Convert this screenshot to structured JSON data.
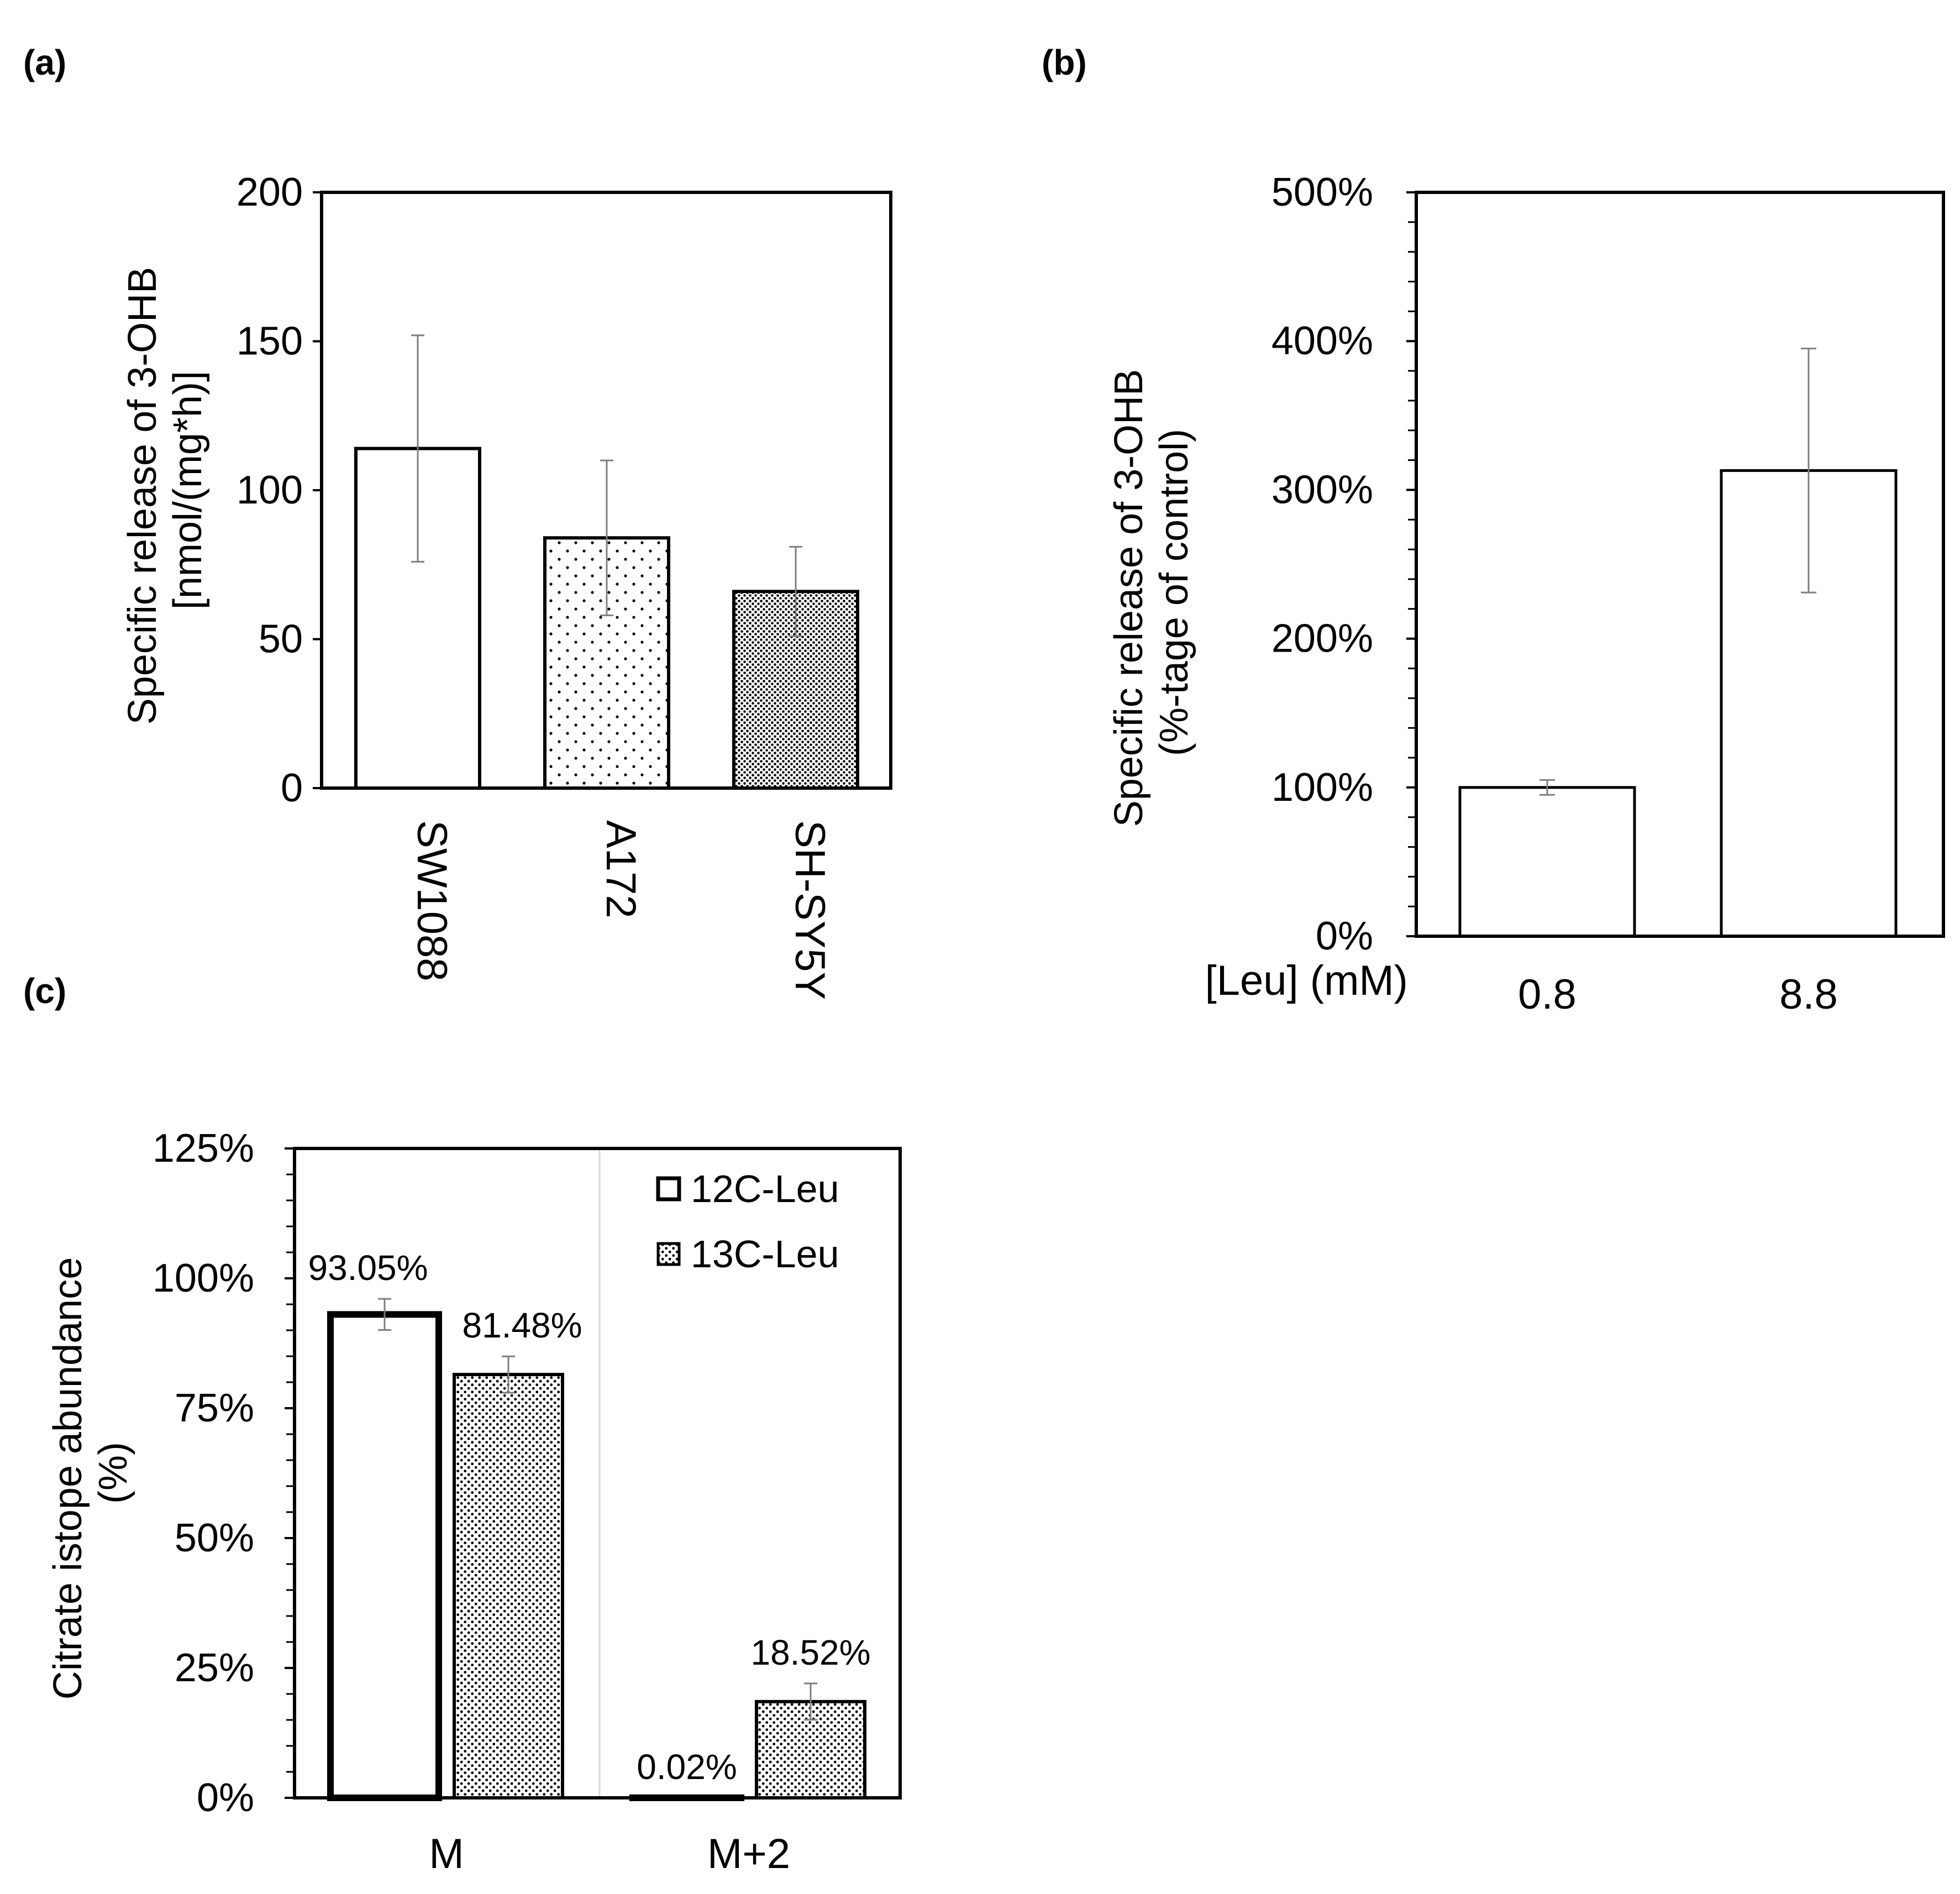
{
  "colors": {
    "bar_fill": "#ffffff",
    "pattern_dot": "#000000",
    "axis": "#000000",
    "error_bar": "#7f7f7f",
    "divider": "#d9d9d9"
  },
  "chart_data": [
    {
      "panel": "(a)",
      "type": "bar",
      "categories": [
        "SW1088",
        "A172",
        "SH-SY5Y"
      ],
      "values": [
        114,
        84,
        66
      ],
      "errors": [
        38,
        26,
        15
      ],
      "fills": [
        "white",
        "sparse-dots",
        "dense-dots"
      ],
      "ylabel_lines": [
        "Specific release of 3-OHB",
        "[nmol/(mg*h)]"
      ],
      "yticks": [
        "0",
        "50",
        "100",
        "150",
        "200"
      ],
      "ylim": [
        0,
        200
      ]
    },
    {
      "panel": "(b)",
      "type": "bar",
      "categories": [
        "0.8",
        "8.8"
      ],
      "values": [
        100,
        313
      ],
      "errors": [
        5,
        82
      ],
      "xlabel": "[Leu] (mM)",
      "ylabel_lines": [
        "Specific release of 3-OHB",
        "(%-tage of control)"
      ],
      "yticks": [
        "0%",
        "100%",
        "200%",
        "300%",
        "400%",
        "500%"
      ],
      "ylim": [
        0,
        500
      ]
    },
    {
      "panel": "(c)",
      "type": "bar",
      "categories": [
        "M",
        "M+2"
      ],
      "series": [
        {
          "name": "12C-Leu",
          "values": [
            93.05,
            0.02
          ],
          "errors": [
            3,
            0
          ],
          "labels": [
            "93.05%",
            "0.02%"
          ]
        },
        {
          "name": "13C-Leu",
          "values": [
            81.48,
            18.52
          ],
          "errors": [
            3.5,
            3.5
          ],
          "labels": [
            "81.48%",
            "18.52%"
          ]
        }
      ],
      "ylabel_lines": [
        "Citrate istope abundance",
        "(%)"
      ],
      "yticks": [
        "0%",
        "25%",
        "50%",
        "75%",
        "100%",
        "125%"
      ],
      "ylim": [
        0,
        125
      ]
    }
  ]
}
